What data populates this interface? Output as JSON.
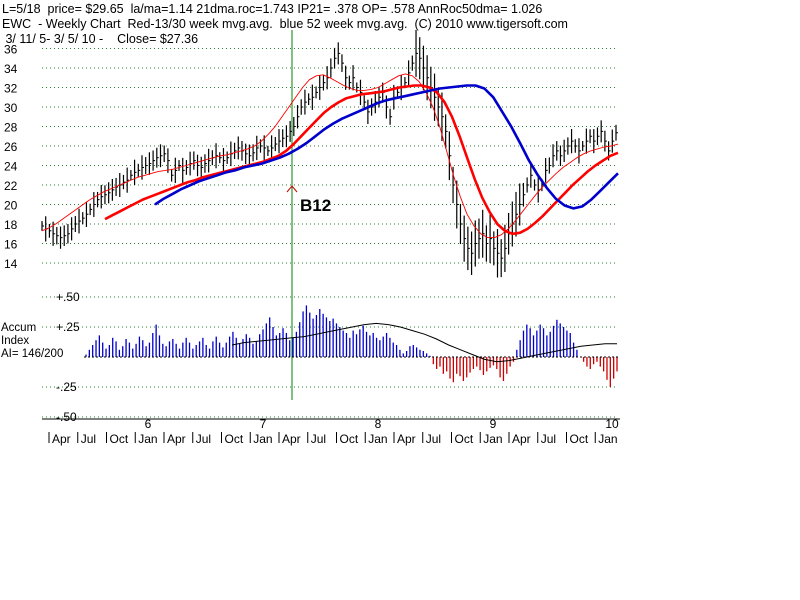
{
  "header": {
    "line1": "L=5/18  price= $29.65  la/ma=1.14 21dma.roc=1.743 IP21= .378 OP= .578 AnnRoc50dma= 1.026",
    "line2": "EWC  - Weekly Chart  Red-13/30 week mvg.avg.  blue 52 week mvg.avg.  (C) 2010 www.tigersoft.com",
    "line3": " 3/ 11/ 5- 3/ 5/ 10 -    Close= $27.36"
  },
  "signal_label": "B12",
  "accum_label": [
    "Accum",
    "Index",
    "AI= 146/200"
  ],
  "chart_data": [
    {
      "type": "line",
      "ticker": "EWC",
      "ylim": [
        13,
        37
      ],
      "y_ticks": [
        "36",
        "34",
        "32",
        "30",
        "28",
        "26",
        "24",
        "22",
        "20",
        "18",
        "16",
        "14"
      ],
      "x_year_labels": [
        "6",
        "7",
        "8",
        "9",
        "10"
      ],
      "x_month_labels": [
        "Apr",
        "Jul",
        "Oct",
        "Jan",
        "Apr",
        "Jul",
        "Oct",
        "Jan",
        "Apr",
        "Jul",
        "Oct",
        "Jan",
        "Apr",
        "Jul",
        "Oct",
        "Jan",
        "Apr",
        "Jul",
        "Oct",
        "Jan"
      ],
      "grid": true,
      "series": [
        {
          "name": "price",
          "color": "#000000",
          "values": [
            17.8,
            17.5,
            17.3,
            17.0,
            16.8,
            16.6,
            16.8,
            17.0,
            17.5,
            18.0,
            18.3,
            18.6,
            19.0,
            19.5,
            20.0,
            20.5,
            20.8,
            21.0,
            21.2,
            21.5,
            21.8,
            22.0,
            22.3,
            22.5,
            23.0,
            23.3,
            23.5,
            23.8,
            24.0,
            24.2,
            24.5,
            24.8,
            25.0,
            25.2,
            24.5,
            23.0,
            23.5,
            24.0,
            23.5,
            23.8,
            24.2,
            24.5,
            24.0,
            23.8,
            24.2,
            24.5,
            24.8,
            25.0,
            24.8,
            24.5,
            24.8,
            25.2,
            25.5,
            25.8,
            25.5,
            25.2,
            25.0,
            25.3,
            25.8,
            26.0,
            25.8,
            25.5,
            25.8,
            26.2,
            26.5,
            26.8,
            27.0,
            27.5,
            28.0,
            29.0,
            30.0,
            30.5,
            30.8,
            31.0,
            31.5,
            32.0,
            32.5,
            33.0,
            34.0,
            35.0,
            35.5,
            34.5,
            33.0,
            32.5,
            33.0,
            32.0,
            31.5,
            30.5,
            29.5,
            30.0,
            30.5,
            31.0,
            31.5,
            30.0,
            29.0,
            31.0,
            31.5,
            32.0,
            32.5,
            33.5,
            34.5,
            35.5,
            35.0,
            34.0,
            33.0,
            32.0,
            31.0,
            30.0,
            29.0,
            27.5,
            25.0,
            22.0,
            20.0,
            18.0,
            16.5,
            15.5,
            15.0,
            16.0,
            16.5,
            17.0,
            16.0,
            16.5,
            15.5,
            15.0,
            14.5,
            15.5,
            17.0,
            18.0,
            19.0,
            20.0,
            21.0,
            22.0,
            23.0,
            22.0,
            21.5,
            22.0,
            23.5,
            24.0,
            25.0,
            25.5,
            25.0,
            25.5,
            26.0,
            26.5,
            26.0,
            25.5,
            26.0,
            26.5,
            27.0,
            26.5,
            27.0,
            27.5,
            26.5,
            25.5,
            26.5,
            27.36
          ]
        },
        {
          "name": "13 week mvg.avg.",
          "color": "#ff0000",
          "values": [
            17.3,
            17.6,
            18.0,
            18.5,
            19.0,
            19.5,
            20.0,
            20.5,
            20.9,
            21.3,
            21.6,
            21.9,
            22.2,
            22.5,
            22.8,
            23.0,
            23.2,
            23.4,
            23.5,
            23.6,
            23.8,
            24.0,
            24.2,
            24.4,
            24.6,
            24.8,
            25.0,
            25.1,
            25.3,
            25.5,
            25.7,
            26.0,
            26.5,
            27.2,
            28.0,
            29.0,
            30.0,
            31.0,
            32.0,
            32.8,
            33.2,
            33.3,
            33.0,
            32.6,
            32.2,
            31.9,
            31.7,
            31.7,
            31.8,
            32.0,
            32.4,
            32.8,
            33.2,
            33.4,
            33.2,
            32.6,
            31.5,
            30.0,
            28.0,
            25.5,
            23.0,
            20.8,
            19.0,
            17.8,
            17.0,
            16.6,
            16.6,
            16.9,
            17.5,
            18.3,
            19.2,
            20.1,
            21.0,
            21.8,
            22.5,
            23.2,
            23.8,
            24.3,
            24.8,
            25.2,
            25.5,
            25.7,
            25.9,
            26.0,
            26.2
          ]
        },
        {
          "name": "30 week mvg.avg.",
          "color": "#ff0000",
          "values": [
            18.5,
            18.9,
            19.3,
            19.7,
            20.1,
            20.5,
            20.8,
            21.1,
            21.4,
            21.7,
            22.0,
            22.3,
            22.5,
            22.8,
            23.0,
            23.2,
            23.4,
            23.6,
            23.8,
            24.0,
            24.2,
            24.4,
            24.7,
            25.0,
            25.5,
            26.2,
            27.0,
            27.8,
            28.6,
            29.4,
            30.0,
            30.5,
            30.9,
            31.1,
            31.3,
            31.4,
            31.5,
            31.6,
            31.8,
            32.0,
            32.1,
            32.2,
            32.2,
            32.0,
            31.5,
            30.5,
            29.0,
            27.0,
            24.8,
            22.6,
            20.7,
            19.2,
            18.0,
            17.3,
            17.0,
            17.1,
            17.5,
            18.1,
            18.8,
            19.6,
            20.4,
            21.2,
            22.0,
            22.7,
            23.4,
            24.0,
            24.5,
            25.0,
            25.3
          ]
        },
        {
          "name": "52 week mvg.avg.",
          "color": "#0000cc",
          "values": [
            20.0,
            20.6,
            21.1,
            21.6,
            22.0,
            22.4,
            22.7,
            23.0,
            23.3,
            23.5,
            23.8,
            24.0,
            24.2,
            24.5,
            24.8,
            25.2,
            25.7,
            26.3,
            27.0,
            27.7,
            28.3,
            28.8,
            29.2,
            29.6,
            30.0,
            30.4,
            30.7,
            30.9,
            31.1,
            31.3,
            31.5,
            31.7,
            31.9,
            32.0,
            32.1,
            32.2,
            32.2,
            31.9,
            31.0,
            29.5,
            28.0,
            26.3,
            24.5,
            23.0,
            21.7,
            20.6,
            19.9,
            19.6,
            19.8,
            20.5,
            21.4,
            22.3,
            23.2
          ]
        }
      ]
    },
    {
      "type": "bar",
      "title": "Accum Index",
      "ylim": [
        -0.5,
        0.55
      ],
      "y_ticks": [
        "+.50",
        "+.25",
        ".",
        "-.25",
        "-.50"
      ],
      "grid": true,
      "series": [
        {
          "name": "Accum Index",
          "color_positive": "#0000cc",
          "color_negative": "#cc0000",
          "values": [
            0.02,
            0.06,
            0.1,
            0.14,
            0.18,
            0.12,
            0.07,
            0.1,
            0.16,
            0.13,
            0.06,
            0.09,
            0.15,
            0.12,
            0.07,
            0.11,
            0.17,
            0.14,
            0.09,
            0.12,
            0.2,
            0.27,
            0.18,
            0.11,
            0.09,
            0.13,
            0.15,
            0.11,
            0.07,
            0.12,
            0.16,
            0.12,
            0.07,
            0.1,
            0.13,
            0.16,
            0.1,
            0.07,
            0.13,
            0.17,
            0.12,
            0.08,
            0.12,
            0.17,
            0.21,
            0.16,
            0.11,
            0.15,
            0.19,
            0.16,
            0.11,
            0.13,
            0.19,
            0.23,
            0.28,
            0.33,
            0.25,
            0.18,
            0.2,
            0.24,
            0.2,
            0.14,
            0.16,
            0.21,
            0.29,
            0.38,
            0.43,
            0.37,
            0.32,
            0.35,
            0.4,
            0.36,
            0.33,
            0.3,
            0.32,
            0.28,
            0.25,
            0.22,
            0.2,
            0.16,
            0.22,
            0.19,
            0.23,
            0.26,
            0.21,
            0.18,
            0.2,
            0.16,
            0.14,
            0.17,
            0.2,
            0.16,
            0.12,
            0.1,
            0.06,
            0.03,
            0.05,
            0.09,
            0.1,
            0.08,
            0.06,
            0.05,
            0.03,
            0.01,
            -0.06,
            -0.1,
            -0.08,
            -0.14,
            -0.12,
            -0.18,
            -0.21,
            -0.14,
            -0.16,
            -0.2,
            -0.17,
            -0.13,
            -0.1,
            -0.08,
            -0.11,
            -0.15,
            -0.12,
            -0.09,
            -0.07,
            -0.1,
            -0.17,
            -0.2,
            -0.14,
            -0.08,
            -0.04,
            0.06,
            0.14,
            0.22,
            0.27,
            0.24,
            0.18,
            0.22,
            0.27,
            0.24,
            0.18,
            0.21,
            0.26,
            0.31,
            0.28,
            0.25,
            0.22,
            0.2,
            0.12,
            0.06,
            0.0,
            -0.04,
            -0.08,
            -0.1,
            -0.06,
            -0.04,
            -0.08,
            -0.12,
            -0.19,
            -0.25,
            -0.18,
            -0.12
          ]
        },
        {
          "name": "AI moving average",
          "color": "#000000",
          "values": [
            0.1,
            0.12,
            0.13,
            0.14,
            0.15,
            0.16,
            0.17,
            0.19,
            0.21,
            0.23,
            0.25,
            0.27,
            0.28,
            0.27,
            0.25,
            0.22,
            0.19,
            0.15,
            0.1,
            0.06,
            0.02,
            -0.02,
            -0.04,
            -0.03,
            -0.01,
            0.01,
            0.03,
            0.05,
            0.07,
            0.09,
            0.1,
            0.11,
            0.11
          ]
        }
      ]
    }
  ]
}
